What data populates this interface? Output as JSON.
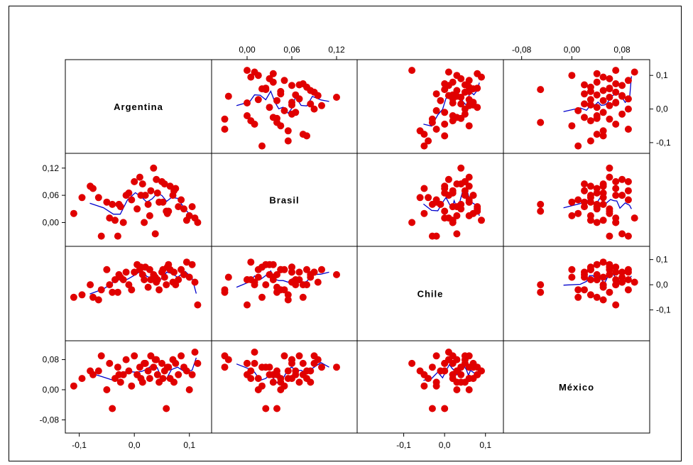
{
  "chart_data": {
    "type": "scatter",
    "subtype": "scatter-plot-matrix",
    "variables": [
      "Argentina",
      "Brasil",
      "Chile",
      "México"
    ],
    "point_color": "#e00000",
    "smoother_color": "#0000cc",
    "axis_ticks": {
      "Argentina": {
        "values": [
          -0.1,
          0.0,
          0.1
        ],
        "labels": [
          "-0,1",
          "0,0",
          "0,1"
        ],
        "range": [
          -0.115,
          0.13
        ]
      },
      "Brasil": {
        "values": [
          0.0,
          0.06,
          0.12
        ],
        "labels": [
          "0,00",
          "0,06",
          "0,12"
        ],
        "range": [
          -0.04,
          0.14
        ]
      },
      "Chile": {
        "values": [
          -0.1,
          0.0,
          0.1
        ],
        "labels": [
          "-0,1",
          "0,0",
          "0,1"
        ],
        "range": [
          -0.2,
          0.13
        ]
      },
      "México": {
        "values": [
          -0.08,
          0.0,
          0.08
        ],
        "labels": [
          "-0,08",
          "0,00",
          "0,08"
        ],
        "range": [
          -0.1,
          0.115
        ]
      }
    },
    "top_axis_labels": [
      {
        "var": "Brasil",
        "labels": [
          "0,00",
          "0,06",
          "0,12"
        ]
      },
      {
        "var": "México",
        "labels": [
          "-0,08",
          "0,00",
          "0,08"
        ]
      }
    ],
    "bottom_axis_labels": [
      {
        "var": "Argentina",
        "labels": [
          "-0,1",
          "0,0",
          "0,1"
        ]
      },
      {
        "var": "Chile",
        "labels": [
          "-0,1",
          "0,0",
          "0,1"
        ]
      }
    ],
    "left_axis_labels": [
      {
        "var": "Brasil",
        "labels": [
          "0,12",
          "0,06",
          "0,00"
        ]
      },
      {
        "var": "México",
        "labels": [
          "0,08",
          "0,00",
          "-0,08"
        ]
      }
    ],
    "right_axis_labels": [
      {
        "var": "Argentina",
        "labels": [
          "0,1",
          "0,0",
          "-0,1"
        ]
      },
      {
        "var": "Chile",
        "labels": [
          "0,1",
          "0,0",
          "-0,1"
        ]
      }
    ],
    "observations": {
      "Argentina": [
        -0.11,
        -0.095,
        -0.08,
        -0.075,
        -0.06,
        -0.05,
        -0.045,
        -0.04,
        -0.035,
        -0.03,
        -0.025,
        -0.02,
        -0.015,
        -0.01,
        -0.005,
        0.0,
        0.005,
        0.01,
        0.015,
        0.02,
        0.025,
        0.028,
        0.03,
        0.035,
        0.04,
        0.042,
        0.045,
        0.05,
        0.055,
        0.058,
        0.06,
        0.065,
        0.07,
        0.075,
        0.08,
        0.085,
        0.09,
        0.095,
        0.1,
        0.105,
        0.11,
        0.115,
        0.012,
        0.038,
        0.062,
        0.072,
        -0.065,
        -0.028,
        0.018,
        0.052
      ],
      "Brasil": [
        0.02,
        0.055,
        0.08,
        0.075,
        -0.03,
        0.045,
        0.01,
        0.04,
        0.005,
        -0.03,
        0.035,
        0.0,
        0.06,
        0.065,
        0.05,
        0.09,
        0.03,
        0.1,
        0.085,
        0.06,
        0.04,
        0.015,
        0.07,
        0.12,
        0.095,
        0.065,
        0.045,
        0.09,
        0.085,
        0.025,
        0.02,
        0.08,
        0.06,
        0.075,
        0.035,
        0.05,
        0.03,
        0.005,
        0.015,
        0.035,
        0.01,
        0.0,
        0.06,
        -0.025,
        0.025,
        0.07,
        0.055,
        0.04,
        0.0,
        0.045
      ],
      "Chile": [
        -0.05,
        -0.04,
        0.0,
        -0.05,
        -0.02,
        0.06,
        0.0,
        -0.03,
        0.02,
        -0.03,
        0.03,
        0.02,
        0.05,
        0.0,
        -0.02,
        0.05,
        0.08,
        0.06,
        0.04,
        0.07,
        -0.01,
        0.06,
        0.02,
        0.04,
        0.01,
        0.02,
        -0.02,
        0.05,
        0.03,
        0.0,
        0.07,
        0.06,
        0.01,
        0.0,
        0.02,
        0.06,
        0.04,
        0.09,
        0.03,
        0.08,
        0.01,
        -0.08,
        0.07,
        0.03,
        0.08,
        0.05,
        -0.06,
        0.04,
        0.02,
        0.06
      ],
      "México": [
        0.01,
        0.03,
        0.05,
        0.04,
        0.09,
        0.0,
        0.07,
        -0.05,
        0.03,
        0.06,
        0.02,
        0.04,
        0.08,
        0.05,
        0.01,
        0.09,
        0.04,
        0.06,
        0.02,
        0.07,
        0.05,
        0.03,
        0.09,
        0.06,
        0.08,
        0.04,
        0.02,
        0.07,
        0.05,
        -0.05,
        0.06,
        0.03,
        0.08,
        0.07,
        0.04,
        0.09,
        0.06,
        0.05,
        0.0,
        0.04,
        0.1,
        0.07,
        0.03,
        0.08,
        0.06,
        0.02,
        0.05,
        0.04,
        0.07,
        0.03
      ]
    }
  }
}
